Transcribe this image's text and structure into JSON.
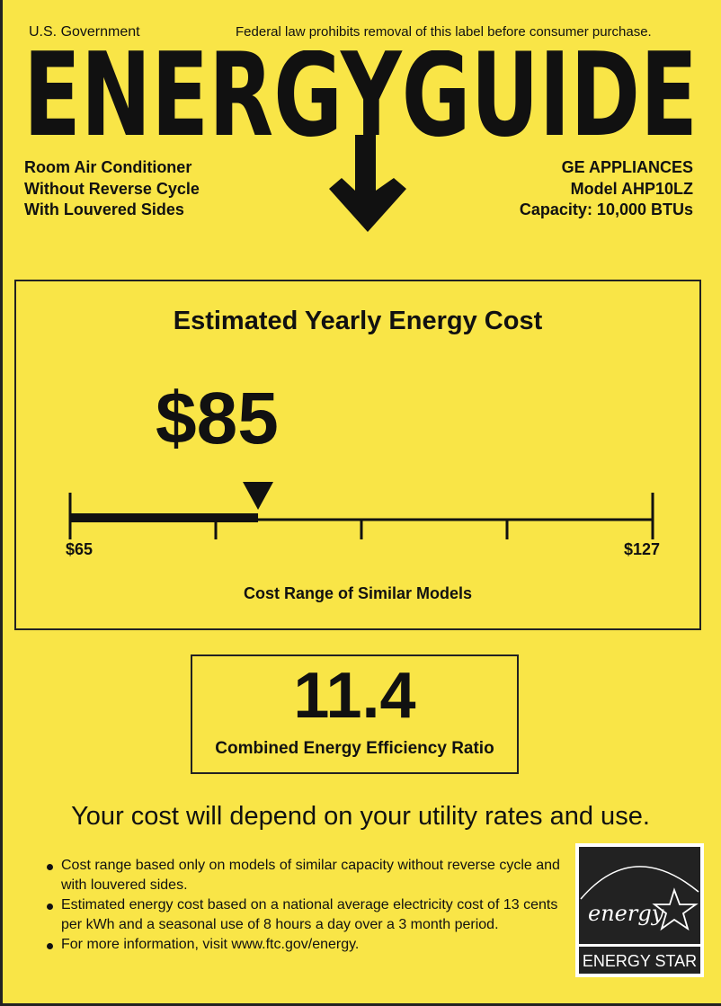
{
  "header": {
    "government": "U.S. Government",
    "notice": "Federal law prohibits removal of this label before consumer purchase.",
    "logo_text": "ENERGYGUIDE"
  },
  "product": {
    "lines": [
      "Room Air Conditioner",
      "Without Reverse Cycle",
      "With Louvered Sides"
    ],
    "manufacturer": "GE APPLIANCES",
    "model": "Model AHP10LZ",
    "capacity": "Capacity: 10,000 BTUs"
  },
  "cost": {
    "heading": "Estimated Yearly Energy Cost",
    "value": "$85",
    "value_number": 85,
    "range_min_label": "$65",
    "range_max_label": "$127",
    "range_min": 65,
    "range_max": 127,
    "range_caption": "Cost Range of Similar Models"
  },
  "efficiency": {
    "value": "11.4",
    "label": "Combined Energy Efficiency Ratio"
  },
  "disclaimer": "Your cost will depend on your utility rates and use.",
  "notes": [
    "Cost range based only on models of similar capacity without reverse cycle and with louvered sides.",
    "Estimated energy cost based on a national average electricity cost of 13 cents per kWh and a seasonal use of 8 hours a day over a 3 month period.",
    "For more information, visit www.ftc.gov/energy."
  ],
  "energy_star": {
    "script": "energy",
    "label": "ENERGY STAR"
  },
  "colors": {
    "background": "#f9e547",
    "ink": "#111111"
  }
}
